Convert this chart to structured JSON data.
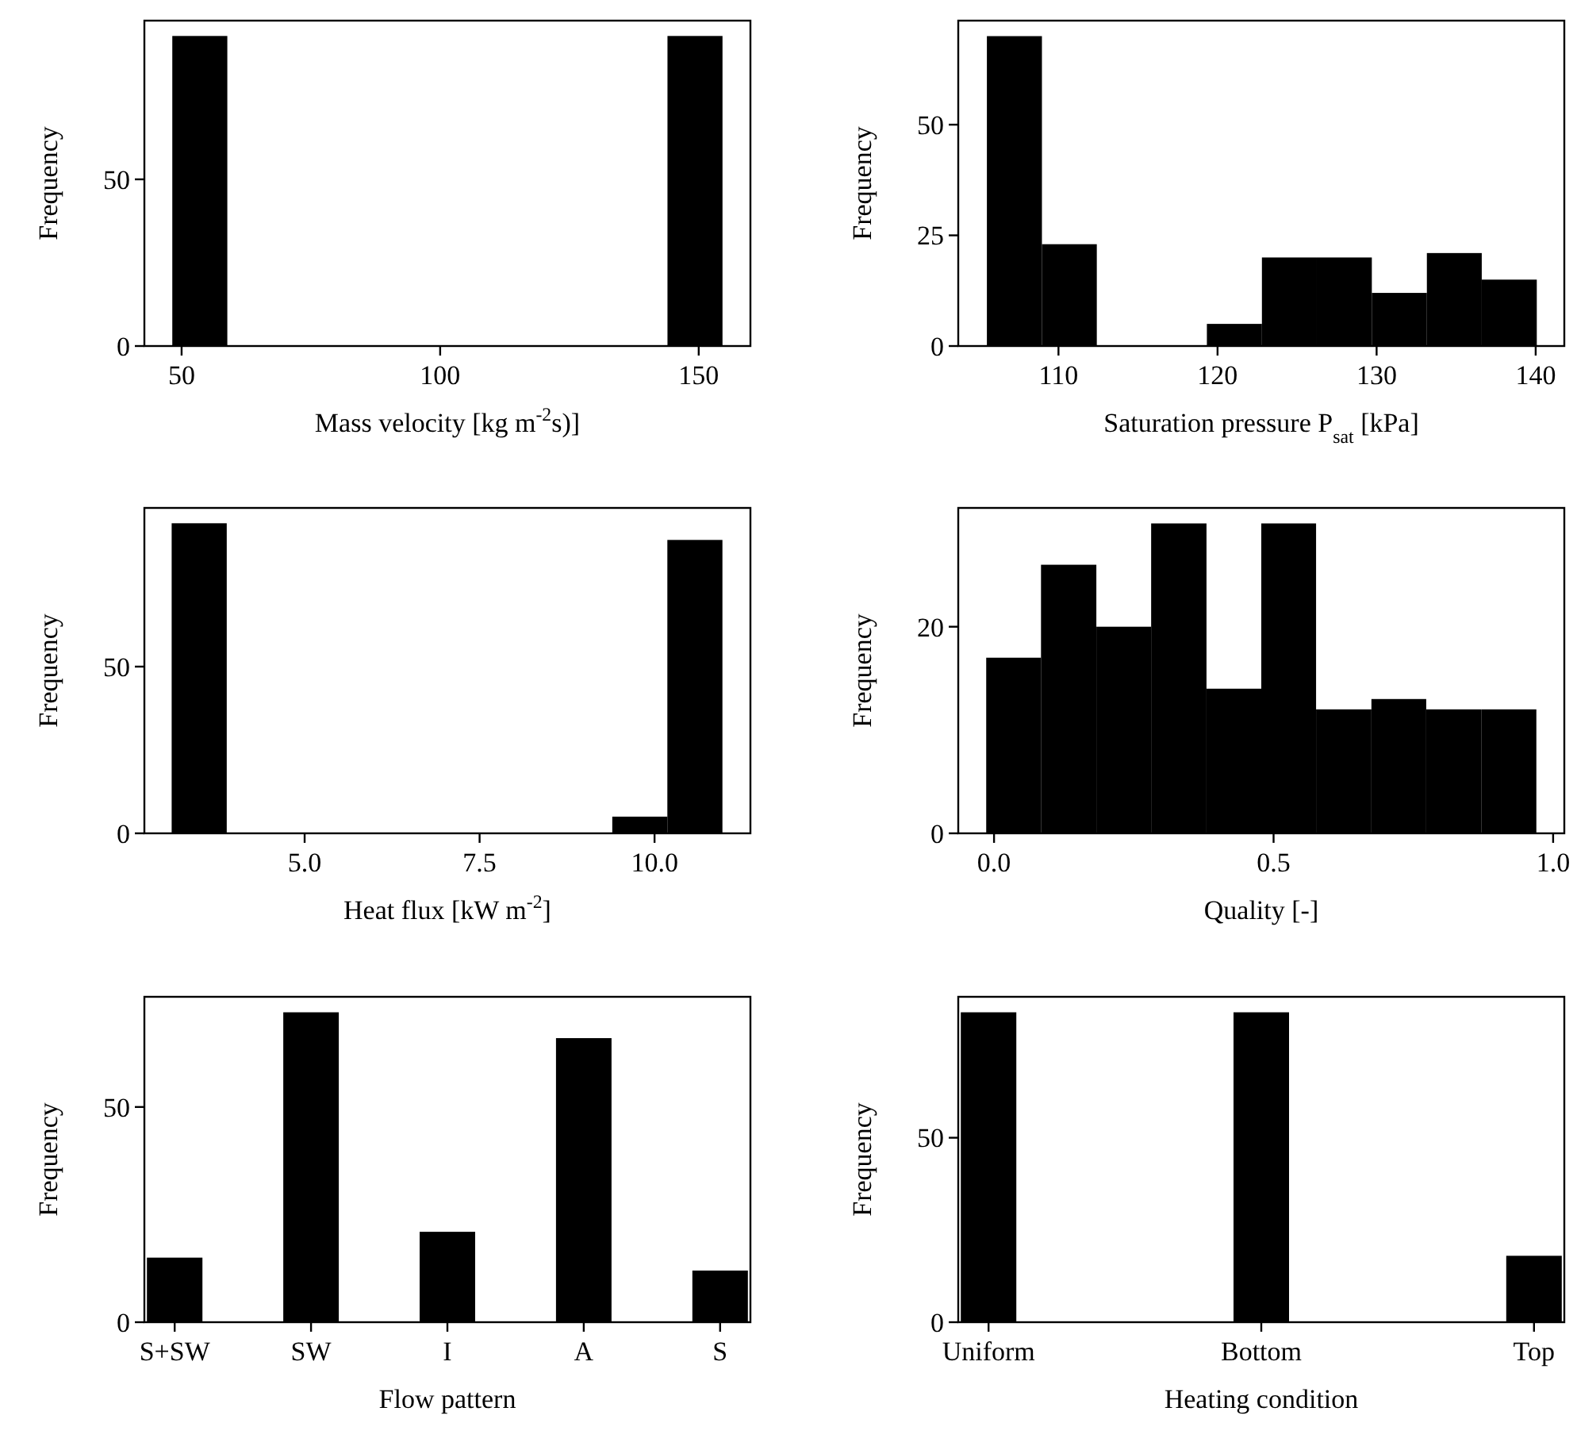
{
  "chart_data": [
    {
      "type": "histogram",
      "xlabel": "Mass velocity [kg m$^{-2}$s)]",
      "ylabel": "Frequency",
      "color": "#000000",
      "bins": [
        48.2,
        58.84,
        69.48,
        80.12,
        90.76,
        101.4,
        112.04,
        122.68,
        133.32,
        143.96,
        154.6
      ],
      "values": [
        93,
        0,
        0,
        0,
        0,
        0,
        0,
        0,
        0,
        93
      ],
      "xlim": [
        42.8,
        160
      ],
      "ylim": [
        0,
        97.6
      ],
      "xticks": [
        50,
        100,
        150
      ],
      "yticks": [
        0,
        50
      ]
    },
    {
      "type": "histogram",
      "xlabel": "Saturation pressure P$_{sat}$ [kPa]",
      "ylabel": "Frequency",
      "color": "#000000",
      "bins": [
        105.5,
        108.96,
        112.41,
        115.87,
        119.33,
        122.79,
        126.24,
        129.7,
        133.16,
        136.61,
        140.07
      ],
      "values": [
        70,
        23,
        0,
        0,
        5,
        20,
        20,
        12,
        21,
        15
      ],
      "xlim": [
        103.7,
        141.8
      ],
      "ylim": [
        0,
        73.5
      ],
      "xticks": [
        110,
        120,
        130,
        140
      ],
      "yticks": [
        0,
        25,
        50
      ]
    },
    {
      "type": "histogram",
      "xlabel": "Heat flux [kW m$^{-2}$]",
      "ylabel": "Frequency",
      "color": "#000000",
      "bins": [
        3.1,
        3.887,
        4.674,
        5.461,
        6.248,
        7.035,
        7.822,
        8.609,
        9.396,
        10.183,
        10.97
      ],
      "values": [
        93,
        0,
        0,
        0,
        0,
        0,
        0,
        0,
        5,
        88
      ],
      "xlim": [
        2.71,
        11.37
      ],
      "ylim": [
        0,
        97.6
      ],
      "xticks": [
        {
          "value": 5,
          "label": "5.0"
        },
        {
          "value": 7.5,
          "label": "7.5"
        },
        {
          "value": 10,
          "label": "10.0"
        }
      ],
      "yticks": [
        0,
        50
      ]
    },
    {
      "type": "histogram",
      "xlabel": "Quality [-]",
      "ylabel": "Frequency",
      "color": "#000000",
      "bins": [
        -0.014,
        0.084,
        0.183,
        0.281,
        0.38,
        0.478,
        0.576,
        0.675,
        0.773,
        0.872,
        0.97
      ],
      "values": [
        17,
        26,
        20,
        30,
        14,
        30,
        12,
        13,
        12,
        12
      ],
      "xlim": [
        -0.064,
        1.02
      ],
      "ylim": [
        0,
        31.5
      ],
      "xticks": [
        {
          "value": 0,
          "label": "0.0"
        },
        {
          "value": 0.5,
          "label": "0.5"
        },
        {
          "value": 1,
          "label": "1.0"
        }
      ],
      "yticks": [
        0,
        20
      ]
    },
    {
      "type": "bar",
      "xlabel": "Flow pattern",
      "ylabel": "Frequency",
      "color": "#000000",
      "categories": [
        "S+SW",
        "SW",
        "I",
        "A",
        "S"
      ],
      "values": [
        15,
        72,
        21,
        66,
        12
      ],
      "ylim": [
        0,
        75.6
      ],
      "yticks": [
        0,
        50
      ]
    },
    {
      "type": "bar",
      "xlabel": "Heating condition",
      "ylabel": "Frequency",
      "color": "#000000",
      "categories": [
        "Uniform",
        "Bottom",
        "Top"
      ],
      "values": [
        84,
        84,
        18
      ],
      "ylim": [
        0,
        88.2
      ],
      "yticks": [
        0,
        50
      ]
    }
  ]
}
